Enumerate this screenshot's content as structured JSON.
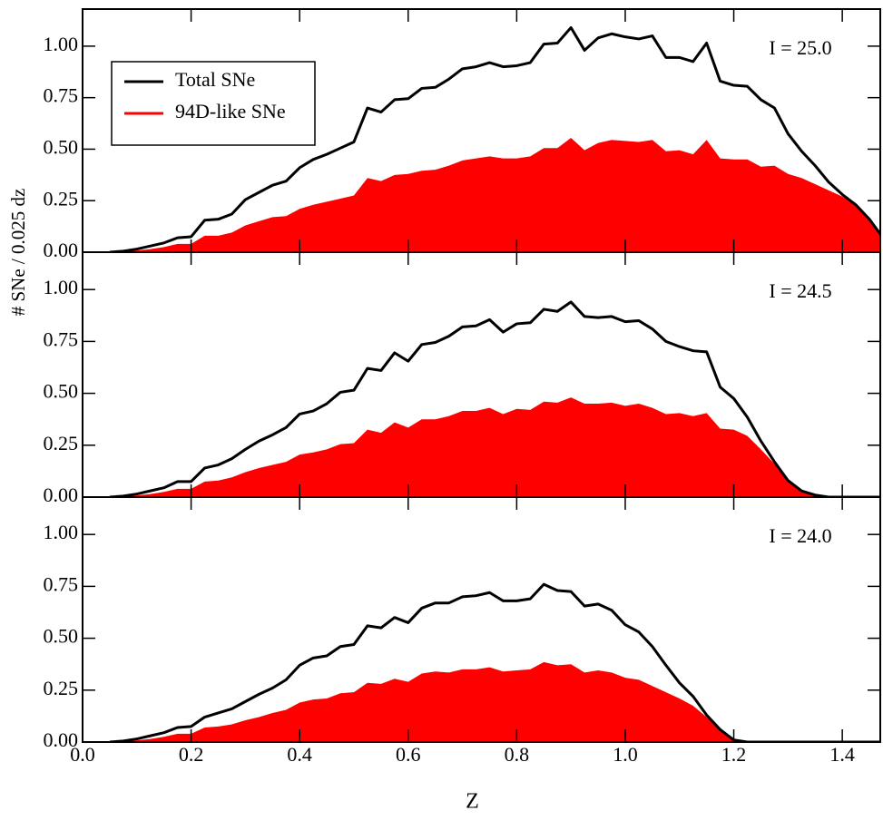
{
  "chart_data": [
    {
      "type": "area_line",
      "annotation": "I = 25.0",
      "legend": "upper left",
      "x": [
        0.05,
        0.075,
        0.1,
        0.125,
        0.15,
        0.175,
        0.2,
        0.225,
        0.25,
        0.275,
        0.3,
        0.325,
        0.35,
        0.375,
        0.4,
        0.425,
        0.45,
        0.475,
        0.5,
        0.525,
        0.55,
        0.575,
        0.6,
        0.625,
        0.65,
        0.675,
        0.7,
        0.725,
        0.75,
        0.775,
        0.8,
        0.825,
        0.85,
        0.875,
        0.9,
        0.925,
        0.95,
        0.975,
        1.0,
        1.025,
        1.05,
        1.075,
        1.1,
        1.125,
        1.15,
        1.175,
        1.2,
        1.225,
        1.25,
        1.275,
        1.3,
        1.325,
        1.35,
        1.375,
        1.4,
        1.425,
        1.45,
        1.475
      ],
      "series": [
        {
          "name": "Total SNe",
          "color": "#000000",
          "values": [
            0,
            0.005,
            0.015,
            0.03,
            0.045,
            0.07,
            0.075,
            0.155,
            0.16,
            0.185,
            0.255,
            0.29,
            0.325,
            0.345,
            0.41,
            0.45,
            0.475,
            0.505,
            0.535,
            0.7,
            0.68,
            0.74,
            0.745,
            0.795,
            0.8,
            0.84,
            0.89,
            0.9,
            0.92,
            0.9,
            0.905,
            0.92,
            1.01,
            1.015,
            1.09,
            0.98,
            1.04,
            1.06,
            1.045,
            1.035,
            1.05,
            0.945,
            0.945,
            0.925,
            1.015,
            0.83,
            0.81,
            0.805,
            0.74,
            0.7,
            0.575,
            0.49,
            0.42,
            0.34,
            0.28,
            0.23,
            0.16,
            0.07
          ]
        },
        {
          "name": "94D-like SNe",
          "color": "#ff0000",
          "values": [
            0,
            0.003,
            0.008,
            0.015,
            0.025,
            0.04,
            0.04,
            0.08,
            0.08,
            0.095,
            0.13,
            0.15,
            0.17,
            0.175,
            0.21,
            0.23,
            0.245,
            0.26,
            0.275,
            0.36,
            0.345,
            0.375,
            0.38,
            0.395,
            0.4,
            0.42,
            0.445,
            0.455,
            0.465,
            0.455,
            0.455,
            0.465,
            0.505,
            0.505,
            0.555,
            0.495,
            0.53,
            0.545,
            0.54,
            0.535,
            0.545,
            0.49,
            0.495,
            0.475,
            0.545,
            0.455,
            0.45,
            0.45,
            0.415,
            0.42,
            0.38,
            0.36,
            0.33,
            0.3,
            0.27,
            0.23,
            0.16,
            0.07
          ]
        }
      ],
      "ylim": [
        0,
        1.18
      ],
      "yticks": [
        {
          "value": 0,
          "label": "0.00"
        },
        {
          "value": 0.25,
          "label": "0.25"
        },
        {
          "value": 0.5,
          "label": "0.50"
        },
        {
          "value": 0.75,
          "label": "0.75"
        },
        {
          "value": 1.0,
          "label": "1.00"
        }
      ]
    },
    {
      "type": "area_line",
      "annotation": "I = 24.5",
      "ylabel": "# SNe / 0.025 dz",
      "x": [
        0.05,
        0.075,
        0.1,
        0.125,
        0.15,
        0.175,
        0.2,
        0.225,
        0.25,
        0.275,
        0.3,
        0.325,
        0.35,
        0.375,
        0.4,
        0.425,
        0.45,
        0.475,
        0.5,
        0.525,
        0.55,
        0.575,
        0.6,
        0.625,
        0.65,
        0.675,
        0.7,
        0.725,
        0.75,
        0.775,
        0.8,
        0.825,
        0.85,
        0.875,
        0.9,
        0.925,
        0.95,
        0.975,
        1.0,
        1.025,
        1.05,
        1.075,
        1.1,
        1.125,
        1.15,
        1.175,
        1.2,
        1.225,
        1.25,
        1.275,
        1.3,
        1.325,
        1.35,
        1.375,
        1.4,
        1.425,
        1.45,
        1.475
      ],
      "series": [
        {
          "color": "#000000",
          "values": [
            0,
            0.005,
            0.015,
            0.03,
            0.045,
            0.075,
            0.075,
            0.14,
            0.155,
            0.185,
            0.23,
            0.27,
            0.3,
            0.335,
            0.4,
            0.415,
            0.45,
            0.505,
            0.515,
            0.62,
            0.61,
            0.695,
            0.655,
            0.735,
            0.745,
            0.775,
            0.82,
            0.825,
            0.855,
            0.795,
            0.835,
            0.84,
            0.905,
            0.895,
            0.94,
            0.87,
            0.865,
            0.87,
            0.845,
            0.85,
            0.81,
            0.75,
            0.725,
            0.705,
            0.7,
            0.53,
            0.475,
            0.385,
            0.27,
            0.17,
            0.08,
            0.03,
            0.01,
            0,
            0,
            0,
            0,
            0
          ]
        },
        {
          "color": "#ff0000",
          "values": [
            0,
            0.003,
            0.008,
            0.015,
            0.025,
            0.04,
            0.04,
            0.075,
            0.08,
            0.095,
            0.12,
            0.14,
            0.155,
            0.17,
            0.205,
            0.215,
            0.23,
            0.255,
            0.26,
            0.325,
            0.31,
            0.36,
            0.335,
            0.375,
            0.375,
            0.39,
            0.415,
            0.415,
            0.43,
            0.4,
            0.425,
            0.42,
            0.46,
            0.455,
            0.48,
            0.45,
            0.45,
            0.455,
            0.44,
            0.45,
            0.43,
            0.4,
            0.405,
            0.39,
            0.405,
            0.33,
            0.325,
            0.295,
            0.23,
            0.16,
            0.08,
            0.03,
            0.01,
            0,
            0,
            0,
            0,
            0
          ]
        }
      ],
      "ylim": [
        0,
        1.18
      ],
      "yticks": [
        {
          "value": 0,
          "label": "0.00"
        },
        {
          "value": 0.25,
          "label": "0.25"
        },
        {
          "value": 0.5,
          "label": "0.50"
        },
        {
          "value": 0.75,
          "label": "0.75"
        },
        {
          "value": 1.0,
          "label": "1.00"
        }
      ]
    },
    {
      "type": "area_line",
      "annotation": "I = 24.0",
      "xlabel": "Z",
      "x": [
        0.05,
        0.075,
        0.1,
        0.125,
        0.15,
        0.175,
        0.2,
        0.225,
        0.25,
        0.275,
        0.3,
        0.325,
        0.35,
        0.375,
        0.4,
        0.425,
        0.45,
        0.475,
        0.5,
        0.525,
        0.55,
        0.575,
        0.6,
        0.625,
        0.65,
        0.675,
        0.7,
        0.725,
        0.75,
        0.775,
        0.8,
        0.825,
        0.85,
        0.875,
        0.9,
        0.925,
        0.95,
        0.975,
        1.0,
        1.025,
        1.05,
        1.075,
        1.1,
        1.125,
        1.15,
        1.175,
        1.2,
        1.225,
        1.25,
        1.275,
        1.3,
        1.325,
        1.35,
        1.375,
        1.4,
        1.425,
        1.45,
        1.475
      ],
      "series": [
        {
          "color": "#000000",
          "values": [
            0,
            0.005,
            0.015,
            0.03,
            0.045,
            0.07,
            0.075,
            0.12,
            0.14,
            0.16,
            0.195,
            0.23,
            0.26,
            0.3,
            0.37,
            0.405,
            0.415,
            0.46,
            0.47,
            0.56,
            0.55,
            0.6,
            0.575,
            0.645,
            0.67,
            0.67,
            0.7,
            0.705,
            0.72,
            0.68,
            0.68,
            0.69,
            0.76,
            0.73,
            0.725,
            0.655,
            0.665,
            0.635,
            0.565,
            0.53,
            0.46,
            0.37,
            0.285,
            0.22,
            0.13,
            0.06,
            0.01,
            0,
            0,
            0,
            0,
            0,
            0,
            0,
            0,
            0,
            0,
            0
          ]
        },
        {
          "color": "#ff0000",
          "values": [
            0,
            0.003,
            0.008,
            0.015,
            0.025,
            0.04,
            0.04,
            0.07,
            0.075,
            0.085,
            0.105,
            0.12,
            0.14,
            0.155,
            0.19,
            0.205,
            0.21,
            0.235,
            0.24,
            0.285,
            0.28,
            0.305,
            0.29,
            0.33,
            0.34,
            0.335,
            0.35,
            0.35,
            0.36,
            0.34,
            0.345,
            0.35,
            0.385,
            0.37,
            0.375,
            0.335,
            0.345,
            0.335,
            0.31,
            0.3,
            0.27,
            0.24,
            0.21,
            0.175,
            0.12,
            0.06,
            0.01,
            0,
            0,
            0,
            0,
            0,
            0,
            0,
            0,
            0,
            0,
            0
          ]
        }
      ],
      "ylim": [
        0,
        1.18
      ],
      "yticks": [
        {
          "value": 0,
          "label": "0.00"
        },
        {
          "value": 0.25,
          "label": "0.25"
        },
        {
          "value": 0.5,
          "label": "0.50"
        },
        {
          "value": 0.75,
          "label": "0.75"
        },
        {
          "value": 1.0,
          "label": "1.00"
        }
      ],
      "xlim": [
        0,
        1.47
      ],
      "xticks": [
        {
          "value": 0,
          "label": "0.0"
        },
        0.2,
        0.4,
        0.6,
        0.8,
        {
          "value": 1.0,
          "label": "1.0"
        },
        1.2,
        1.4
      ]
    }
  ]
}
